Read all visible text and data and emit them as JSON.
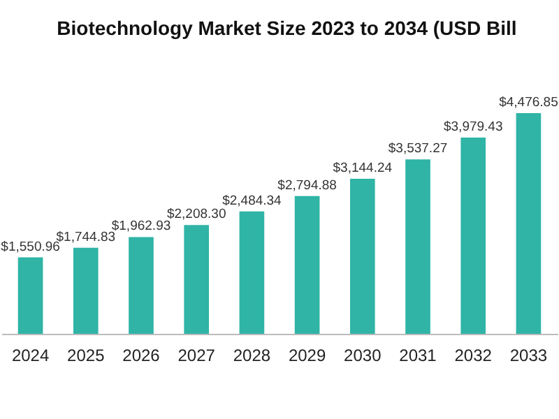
{
  "chart_data": {
    "type": "bar",
    "title": "Biotechnology Market Size 2023 to 2034 (USD Bill",
    "categories": [
      "2024",
      "2025",
      "2026",
      "2027",
      "2028",
      "2029",
      "2030",
      "2031",
      "2032",
      "2033"
    ],
    "series": [
      {
        "color": "#2fb4a6",
        "values": [
          1550.96,
          1744.83,
          1962.93,
          2208.3,
          2484.34,
          2794.88,
          3144.24,
          3537.27,
          3979.43,
          4476.85
        ],
        "value_labels": [
          "$1,550.96",
          "$1,744.83",
          "$1,962.93",
          "$2,208.30",
          "$2,484.34",
          "$2,794.88",
          "$3,144.24",
          "$3,537.27",
          "$3,979.43",
          "$4,476.85"
        ]
      }
    ],
    "grid": false
  }
}
